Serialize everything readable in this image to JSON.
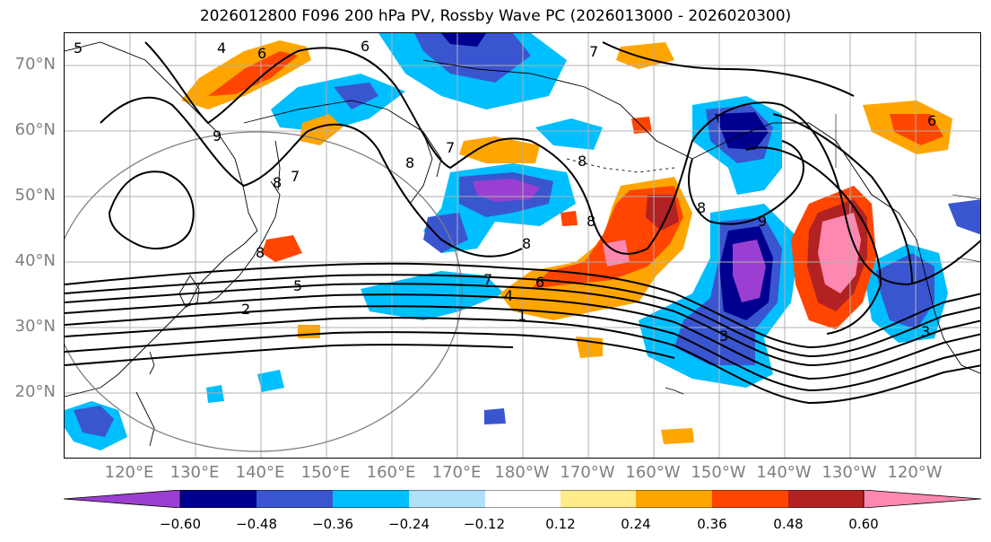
{
  "title": "2026012800 F096 200 hPa PV, Rossby Wave PC (2026013000 - 2026020300)",
  "lat_labels": [
    "70°N",
    "60°N",
    "50°N",
    "40°N",
    "30°N",
    "20°N"
  ],
  "lon_labels": [
    "120°E",
    "130°E",
    "140°E",
    "150°E",
    "160°E",
    "170°E",
    "180°W",
    "170°W",
    "160°W",
    "150°W",
    "140°W",
    "130°W",
    "120°W"
  ],
  "colorbar": {
    "colors": [
      "#9a3fd1",
      "#000090",
      "#3a55d0",
      "#00bfff",
      "#b0e0fa",
      "#ffffff",
      "#ffeb8a",
      "#ffa500",
      "#ff4500",
      "#b22222",
      "#ff88b0"
    ],
    "tick_labels": [
      "−0.60",
      "−0.48",
      "−0.36",
      "−0.24",
      "−0.12",
      "0.12",
      "0.24",
      "0.36",
      "0.48",
      "0.60"
    ]
  },
  "contour_labels": [
    "4",
    "6",
    "6",
    "7",
    "5",
    "9",
    "8",
    "7",
    "8",
    "7",
    "8",
    "8",
    "8",
    "8",
    "9",
    "7",
    "6",
    "4",
    "1",
    "3",
    "3",
    "5",
    "2",
    "8",
    "6"
  ],
  "colors": {
    "contour": "#000000",
    "grid": "#b0b0b0",
    "coast": "#000000",
    "circle": "#808080",
    "axis_text": "#7f7f7f"
  }
}
